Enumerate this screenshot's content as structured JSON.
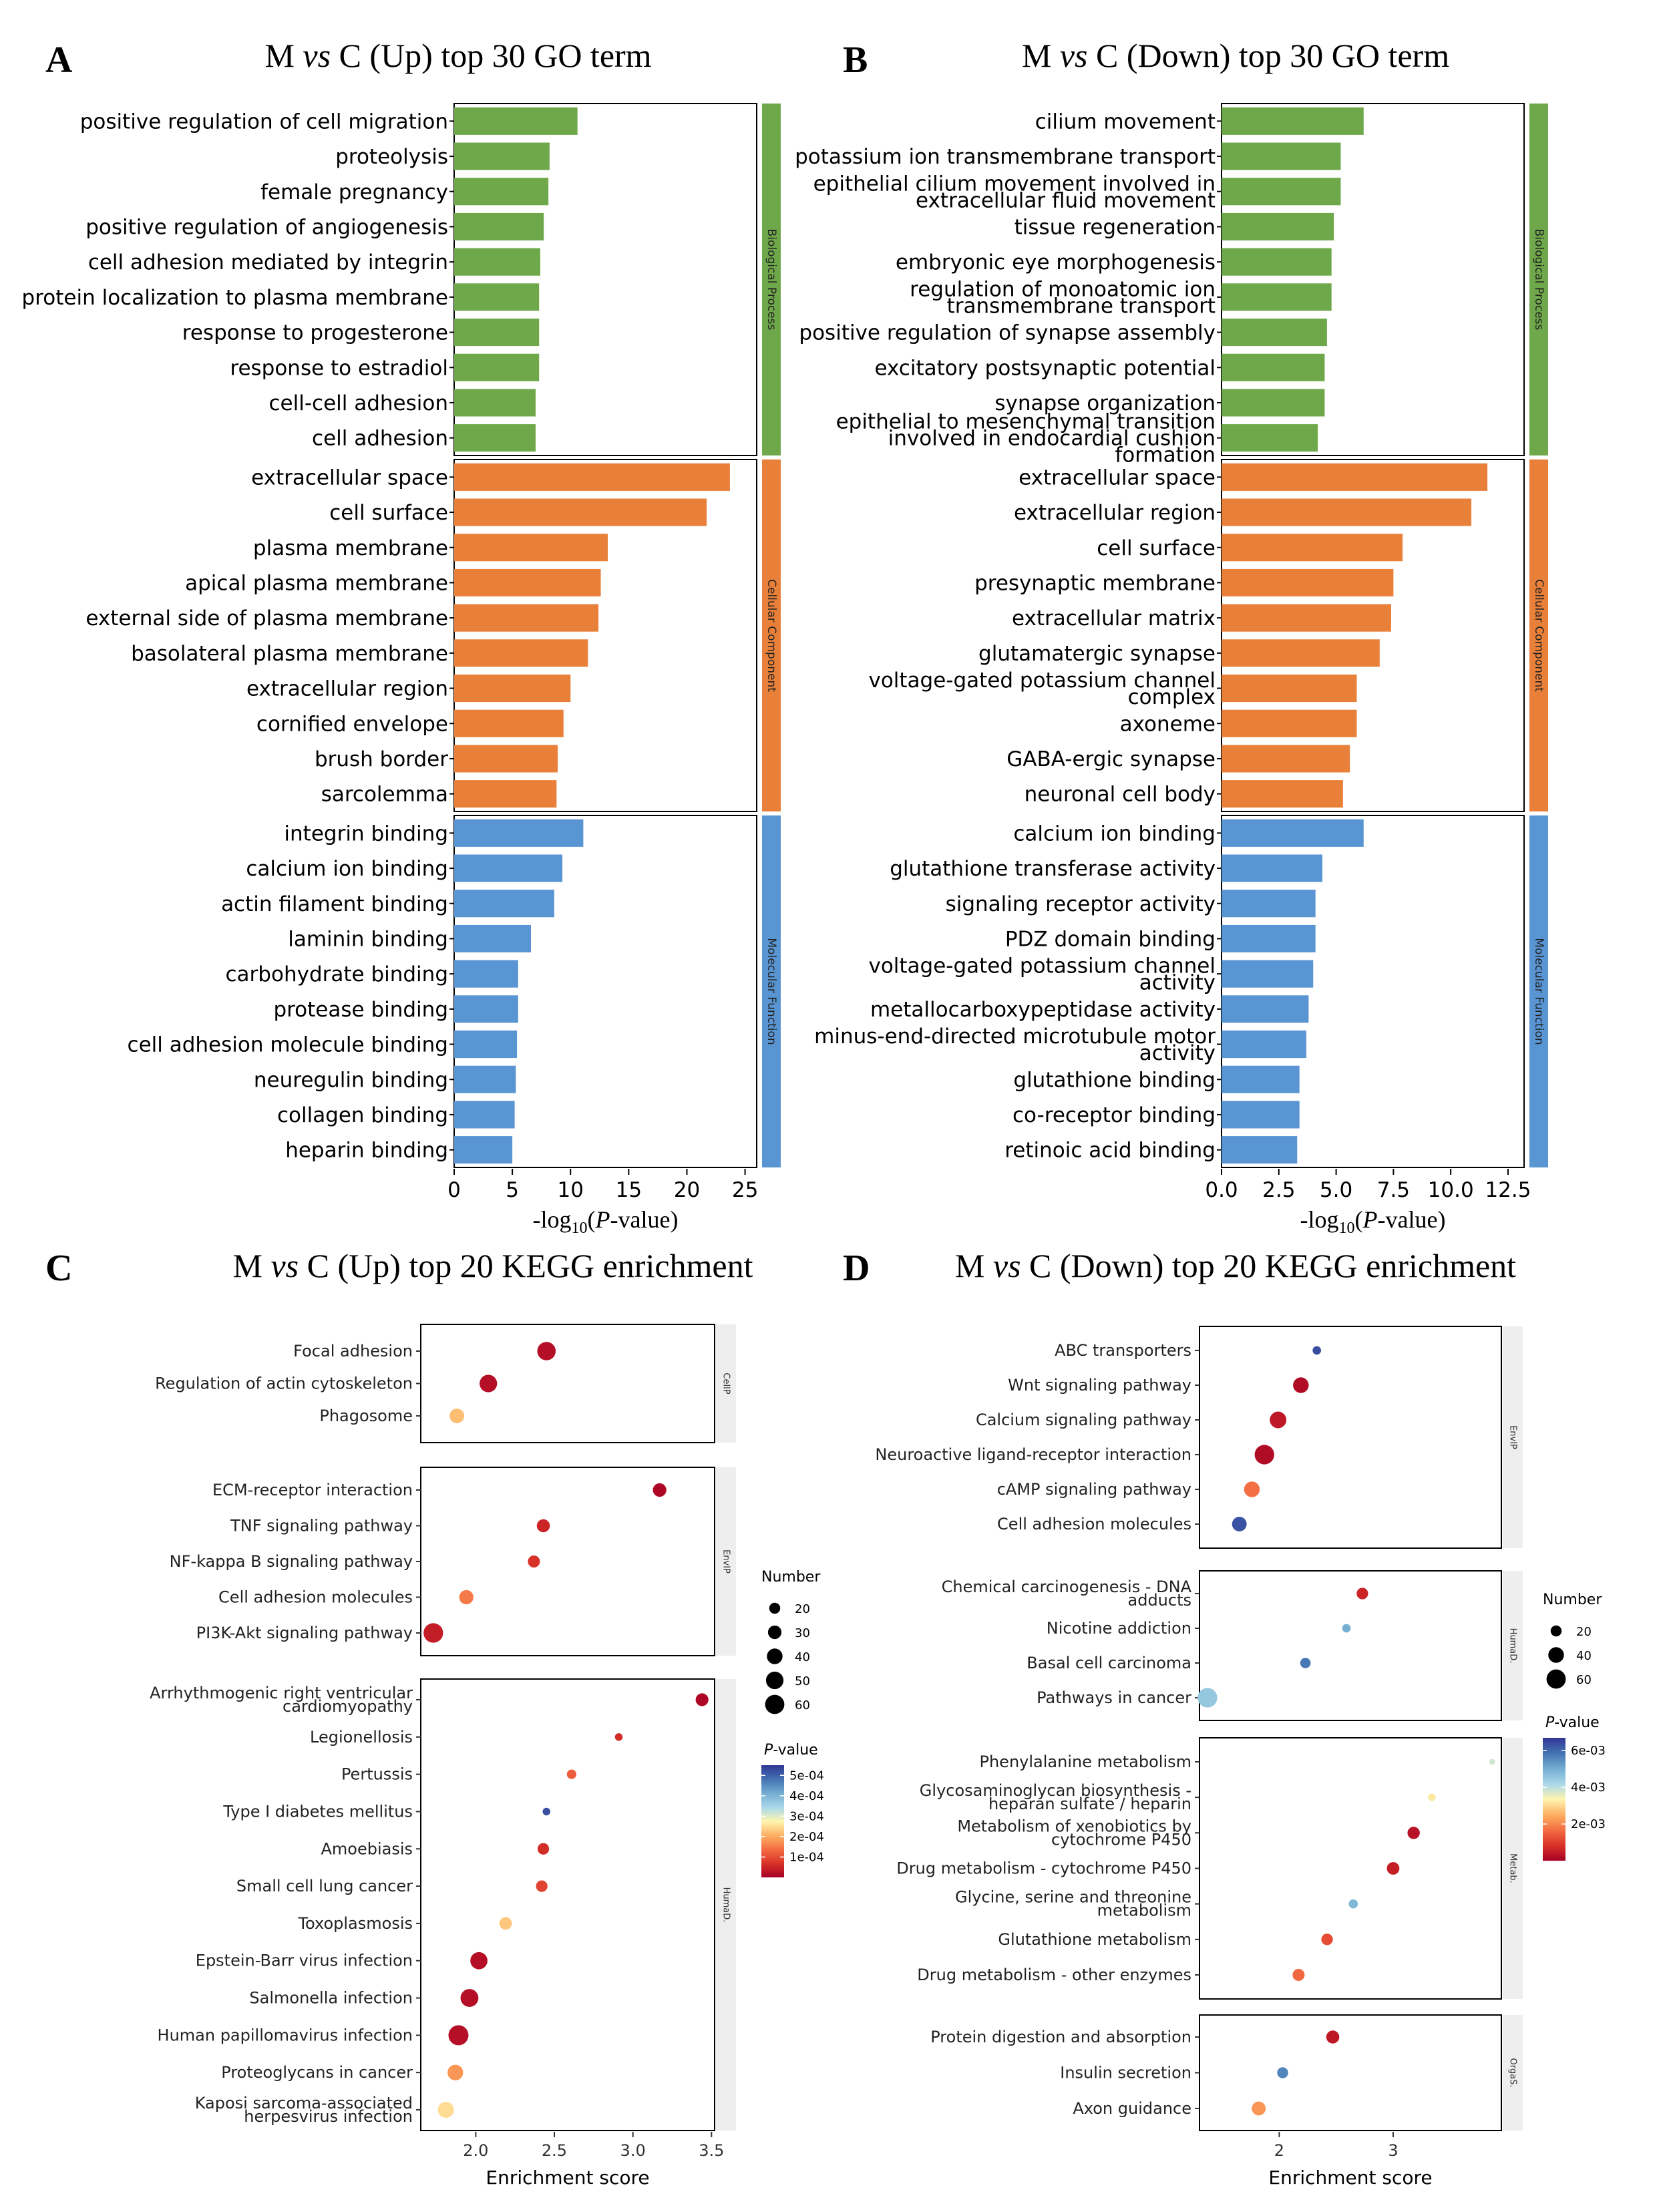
{
  "chart_data": [
    {
      "panel": "A",
      "type": "bar",
      "title": "M vs C (Up) top 30 GO term",
      "xlabel": "-log10(P-value)",
      "xlim": [
        0,
        26
      ],
      "xticks": [
        0,
        5,
        10,
        15,
        20,
        25
      ],
      "colors": {
        "Biological Process": "#6fa84a",
        "Cellular Component": "#e9803a",
        "Molecular Function": "#5a95d3"
      },
      "groups": [
        {
          "name": "Biological Process",
          "categories": [
            "positive regulation of cell migration",
            "proteolysis",
            "female pregnancy",
            "positive regulation of angiogenesis",
            "cell adhesion mediated by integrin",
            "protein localization to plasma membrane",
            "response to progesterone",
            "response to estradiol",
            "cell-cell adhesion",
            "cell adhesion"
          ],
          "values": [
            10.6,
            8.2,
            8.1,
            7.7,
            7.4,
            7.3,
            7.3,
            7.3,
            7.0,
            7.0
          ]
        },
        {
          "name": "Cellular Component",
          "categories": [
            "extracellular space",
            "cell surface",
            "plasma membrane",
            "apical plasma membrane",
            "external side of plasma membrane",
            "basolateral plasma membrane",
            "extracellular region",
            "cornified envelope",
            "brush border",
            "sarcolemma"
          ],
          "values": [
            23.7,
            21.7,
            13.2,
            12.6,
            12.4,
            11.5,
            10.0,
            9.4,
            8.9,
            8.8
          ]
        },
        {
          "name": "Molecular Function",
          "categories": [
            "integrin binding",
            "calcium ion binding",
            "actin filament binding",
            "laminin binding",
            "carbohydrate binding",
            "protease binding",
            "cell adhesion molecule binding",
            "neuregulin binding",
            "collagen binding",
            "heparin binding"
          ],
          "values": [
            11.1,
            9.3,
            8.6,
            6.6,
            5.5,
            5.5,
            5.4,
            5.3,
            5.2,
            5.0
          ]
        }
      ]
    },
    {
      "panel": "B",
      "type": "bar",
      "title": "M vs C (Down) top 30 GO term",
      "xlabel": "-log10(P-value)",
      "xlim": [
        0,
        13.2
      ],
      "xticks": [
        0.0,
        2.5,
        5.0,
        7.5,
        10.0,
        12.5
      ],
      "colors": {
        "Biological Process": "#6fa84a",
        "Cellular Component": "#e9803a",
        "Molecular Function": "#5a95d3"
      },
      "groups": [
        {
          "name": "Biological Process",
          "categories": [
            [
              "cilium movement"
            ],
            [
              "potassium ion transmembrane transport"
            ],
            [
              "epithelial cilium movement involved in",
              "extracellular fluid movement"
            ],
            [
              "tissue regeneration"
            ],
            [
              "embryonic eye morphogenesis"
            ],
            [
              "regulation of monoatomic ion",
              "transmembrane transport"
            ],
            [
              "positive regulation of synapse assembly"
            ],
            [
              "excitatory postsynaptic potential"
            ],
            [
              "synapse organization"
            ],
            [
              "epithelial to mesenchymal transition",
              "involved in endocardial cushion",
              "formation"
            ]
          ],
          "values": [
            6.2,
            5.2,
            5.2,
            4.9,
            4.8,
            4.8,
            4.6,
            4.5,
            4.5,
            4.2
          ]
        },
        {
          "name": "Cellular Component",
          "categories": [
            [
              "extracellular space"
            ],
            [
              "extracellular region"
            ],
            [
              "cell surface"
            ],
            [
              "presynaptic membrane"
            ],
            [
              "extracellular matrix"
            ],
            [
              "glutamatergic synapse"
            ],
            [
              "voltage-gated potassium channel",
              "complex"
            ],
            [
              "axoneme"
            ],
            [
              "GABA-ergic synapse"
            ],
            [
              "neuronal cell body"
            ]
          ],
          "values": [
            11.6,
            10.9,
            7.9,
            7.5,
            7.4,
            6.9,
            5.9,
            5.9,
            5.6,
            5.3
          ]
        },
        {
          "name": "Molecular Function",
          "categories": [
            [
              "calcium ion binding"
            ],
            [
              "glutathione transferase activity"
            ],
            [
              "signaling receptor activity"
            ],
            [
              "PDZ domain binding"
            ],
            [
              "voltage-gated potassium channel",
              "activity"
            ],
            [
              "metallocarboxypeptidase activity"
            ],
            [
              "minus-end-directed microtubule motor",
              "activity"
            ],
            [
              "glutathione binding"
            ],
            [
              "co-receptor binding"
            ],
            [
              "retinoic acid binding"
            ]
          ],
          "values": [
            6.2,
            4.4,
            4.1,
            4.1,
            4.0,
            3.8,
            3.7,
            3.4,
            3.4,
            3.3
          ]
        }
      ]
    },
    {
      "panel": "C",
      "type": "scatter",
      "title": "M vs C (Up) top 20 KEGG enrichment",
      "xlabel": "Enrichment score",
      "xlim": [
        1.65,
        3.52
      ],
      "xticks": [
        2.0,
        2.5,
        3.0,
        3.5
      ],
      "size_legend_title": "Number",
      "size_legend_values": [
        20,
        30,
        40,
        50,
        60
      ],
      "color_legend_title": "P-value",
      "color_legend_ticks": [
        "5e-04",
        "4e-04",
        "3e-04",
        "2e-04",
        "1e-04"
      ],
      "color_range": [
        0,
        0.00055
      ],
      "groups": [
        {
          "name": "CellP",
          "points": [
            {
              "label": [
                "Focal adhesion"
              ],
              "x": 2.45,
              "number": 55,
              "p": 2e-05
            },
            {
              "label": [
                "Regulation of actin cytoskeleton"
              ],
              "x": 2.08,
              "number": 50,
              "p": 2e-05
            },
            {
              "label": [
                "Phagosome"
              ],
              "x": 1.88,
              "number": 35,
              "p": 0.00022
            }
          ]
        },
        {
          "name": "EnvIP",
          "points": [
            {
              "label": [
                "ECM-receptor interaction"
              ],
              "x": 3.17,
              "number": 30,
              "p": 1e-05
            },
            {
              "label": [
                "TNF signaling pathway"
              ],
              "x": 2.43,
              "number": 28,
              "p": 5e-05
            },
            {
              "label": [
                "NF-kappa B signaling pathway"
              ],
              "x": 2.37,
              "number": 24,
              "p": 7e-05
            },
            {
              "label": [
                "Cell adhesion molecules"
              ],
              "x": 1.94,
              "number": 33,
              "p": 0.00015
            },
            {
              "label": [
                "PI3K-Akt signaling pathway"
              ],
              "x": 1.73,
              "number": 62,
              "p": 4e-05
            }
          ]
        },
        {
          "name": "HumaD.",
          "points": [
            {
              "label": [
                "Arrhythmogenic right ventricular",
                "cardiomyopathy"
              ],
              "x": 3.44,
              "number": 27,
              "p": 1e-05
            },
            {
              "label": [
                "Legionellosis"
              ],
              "x": 2.91,
              "number": 10,
              "p": 6e-05
            },
            {
              "label": [
                "Pertussis"
              ],
              "x": 2.61,
              "number": 15,
              "p": 0.00012
            },
            {
              "label": [
                "Type I diabetes mellitus"
              ],
              "x": 2.45,
              "number": 10,
              "p": 0.00052
            },
            {
              "label": [
                "Amoebiasis"
              ],
              "x": 2.43,
              "number": 22,
              "p": 6e-05
            },
            {
              "label": [
                "Small cell lung cancer"
              ],
              "x": 2.42,
              "number": 22,
              "p": 9e-05
            },
            {
              "label": [
                "Toxoplasmosis"
              ],
              "x": 2.19,
              "number": 26,
              "p": 0.00023
            },
            {
              "label": [
                "Epstein-Barr virus infection"
              ],
              "x": 2.02,
              "number": 48,
              "p": 2e-05
            },
            {
              "label": [
                "Salmonella infection"
              ],
              "x": 1.96,
              "number": 52,
              "p": 2e-05
            },
            {
              "label": [
                "Human papillomavirus infection"
              ],
              "x": 1.89,
              "number": 65,
              "p": 2e-05
            },
            {
              "label": [
                "Proteoglycans in cancer"
              ],
              "x": 1.87,
              "number": 40,
              "p": 0.00018
            },
            {
              "label": [
                "Kaposi sarcoma-associated",
                "herpesvirus infection"
              ],
              "x": 1.81,
              "number": 42,
              "p": 0.00025
            }
          ]
        }
      ]
    },
    {
      "panel": "D",
      "type": "scatter",
      "title": "M vs C (Down) top 20 KEGG enrichment",
      "xlabel": "Enrichment score",
      "xlim": [
        1.3,
        3.95
      ],
      "xticks": [
        2,
        3
      ],
      "size_legend_title": "Number",
      "size_legend_values": [
        20,
        40,
        60
      ],
      "color_legend_title": "P-value",
      "color_legend_ticks": [
        "6e-03",
        "4e-03",
        "2e-03"
      ],
      "color_range": [
        0,
        0.0067
      ],
      "groups": [
        {
          "name": "EnvIP",
          "points": [
            {
              "label": [
                "ABC transporters"
              ],
              "x": 2.33,
              "number": 12,
              "p": 0.0064
            },
            {
              "label": [
                "Wnt signaling pathway"
              ],
              "x": 2.19,
              "number": 40,
              "p": 0.0002
            },
            {
              "label": [
                "Calcium signaling pathway"
              ],
              "x": 1.99,
              "number": 45,
              "p": 0.0004
            },
            {
              "label": [
                "Neuroactive ligand-receptor interaction"
              ],
              "x": 1.87,
              "number": 62,
              "p": 0.0002
            },
            {
              "label": [
                "cAMP signaling pathway"
              ],
              "x": 1.76,
              "number": 40,
              "p": 0.0017
            },
            {
              "label": [
                "Cell adhesion molecules"
              ],
              "x": 1.65,
              "number": 35,
              "p": 0.0063
            }
          ]
        },
        {
          "name": "HumaD.",
          "points": [
            {
              "label": [
                "Chemical carcinogenesis - DNA",
                "adducts"
              ],
              "x": 2.73,
              "number": 22,
              "p": 0.0006
            },
            {
              "label": [
                "Nicotine addiction"
              ],
              "x": 2.59,
              "number": 12,
              "p": 0.005
            },
            {
              "label": [
                "Basal cell carcinoma"
              ],
              "x": 2.23,
              "number": 18,
              "p": 0.0058
            },
            {
              "label": [
                "Pathways in cancer"
              ],
              "x": 1.37,
              "number": 62,
              "p": 0.0045
            }
          ]
        },
        {
          "name": "Metab.",
          "points": [
            {
              "label": [
                "Phenylalanine metabolism"
              ],
              "x": 3.87,
              "number": 6,
              "p": 0.0038
            },
            {
              "label": [
                "Glycosaminoglycan biosynthesis -",
                "heparan sulfate / heparin"
              ],
              "x": 3.34,
              "number": 10,
              "p": 0.0032
            },
            {
              "label": [
                "Metabolism of xenobiotics by",
                "cytochrome P450"
              ],
              "x": 3.18,
              "number": 25,
              "p": 0.0003
            },
            {
              "label": [
                "Drug metabolism - cytochrome P450"
              ],
              "x": 3.0,
              "number": 26,
              "p": 0.0005
            },
            {
              "label": [
                "Glycine, serine and threonine",
                "metabolism"
              ],
              "x": 2.65,
              "number": 14,
              "p": 0.0048
            },
            {
              "label": [
                "Glutathione metabolism"
              ],
              "x": 2.42,
              "number": 22,
              "p": 0.0012
            },
            {
              "label": [
                "Drug metabolism - other enzymes"
              ],
              "x": 2.17,
              "number": 24,
              "p": 0.0016
            }
          ]
        },
        {
          "name": "OrgaS.",
          "points": [
            {
              "label": [
                "Protein digestion and absorption"
              ],
              "x": 2.47,
              "number": 28,
              "p": 0.0004
            },
            {
              "label": [
                "Insulin secretion"
              ],
              "x": 2.03,
              "number": 20,
              "p": 0.0056
            },
            {
              "label": [
                "Axon guidance"
              ],
              "x": 1.82,
              "number": 32,
              "p": 0.0022
            }
          ]
        }
      ]
    }
  ],
  "panels": [
    "A",
    "B",
    "C",
    "D"
  ],
  "strip_labels": {
    "bp": "Biological Process",
    "cc": "Cellular Component",
    "mf": "Molecular Function"
  }
}
